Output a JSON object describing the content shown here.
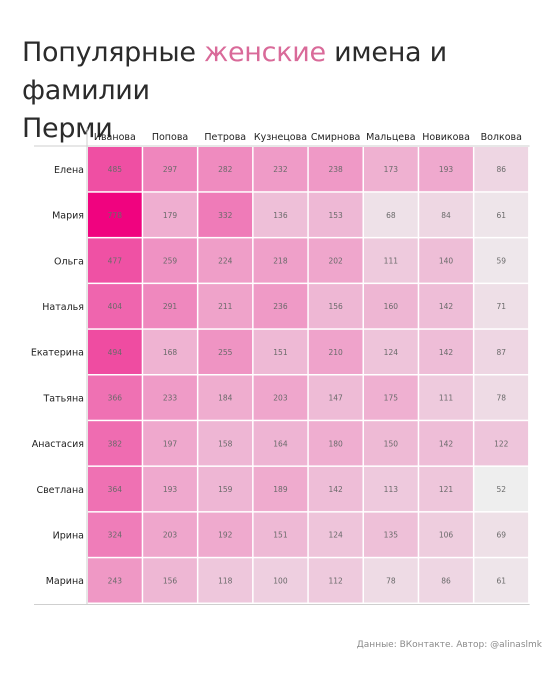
{
  "header": {
    "title_part1": "Популярные ",
    "title_accent": "женские",
    "title_part2": " имена и фамилии",
    "title_line2": "Перми"
  },
  "footer": {
    "credit": "Данные: ВКонтакте. Автор: @alinaslmk"
  },
  "colors": {
    "low": "#eeeeee",
    "high": "#f0037f",
    "accent": "#d96a99"
  },
  "chart_data": {
    "type": "heatmap",
    "columns": [
      "Иванова",
      "Попова",
      "Петрова",
      "Кузнецова",
      "Смирнова",
      "Мальцева",
      "Новикова",
      "Волкова"
    ],
    "rows": [
      "Елена",
      "Мария",
      "Ольга",
      "Наталья",
      "Екатерина",
      "Татьяна",
      "Анастасия",
      "Светлана",
      "Ирина",
      "Марина"
    ],
    "values": [
      [
        485,
        297,
        282,
        232,
        238,
        173,
        193,
        86
      ],
      [
        778,
        179,
        332,
        136,
        153,
        68,
        84,
        61
      ],
      [
        477,
        259,
        224,
        218,
        202,
        111,
        140,
        59
      ],
      [
        404,
        291,
        211,
        236,
        156,
        160,
        142,
        71
      ],
      [
        494,
        168,
        255,
        151,
        210,
        124,
        142,
        87
      ],
      [
        366,
        233,
        184,
        203,
        147,
        175,
        111,
        78
      ],
      [
        382,
        197,
        158,
        164,
        180,
        150,
        142,
        122
      ],
      [
        364,
        193,
        159,
        189,
        142,
        113,
        121,
        52
      ],
      [
        324,
        203,
        192,
        151,
        124,
        135,
        106,
        69
      ],
      [
        243,
        156,
        118,
        100,
        112,
        78,
        86,
        61
      ]
    ]
  }
}
